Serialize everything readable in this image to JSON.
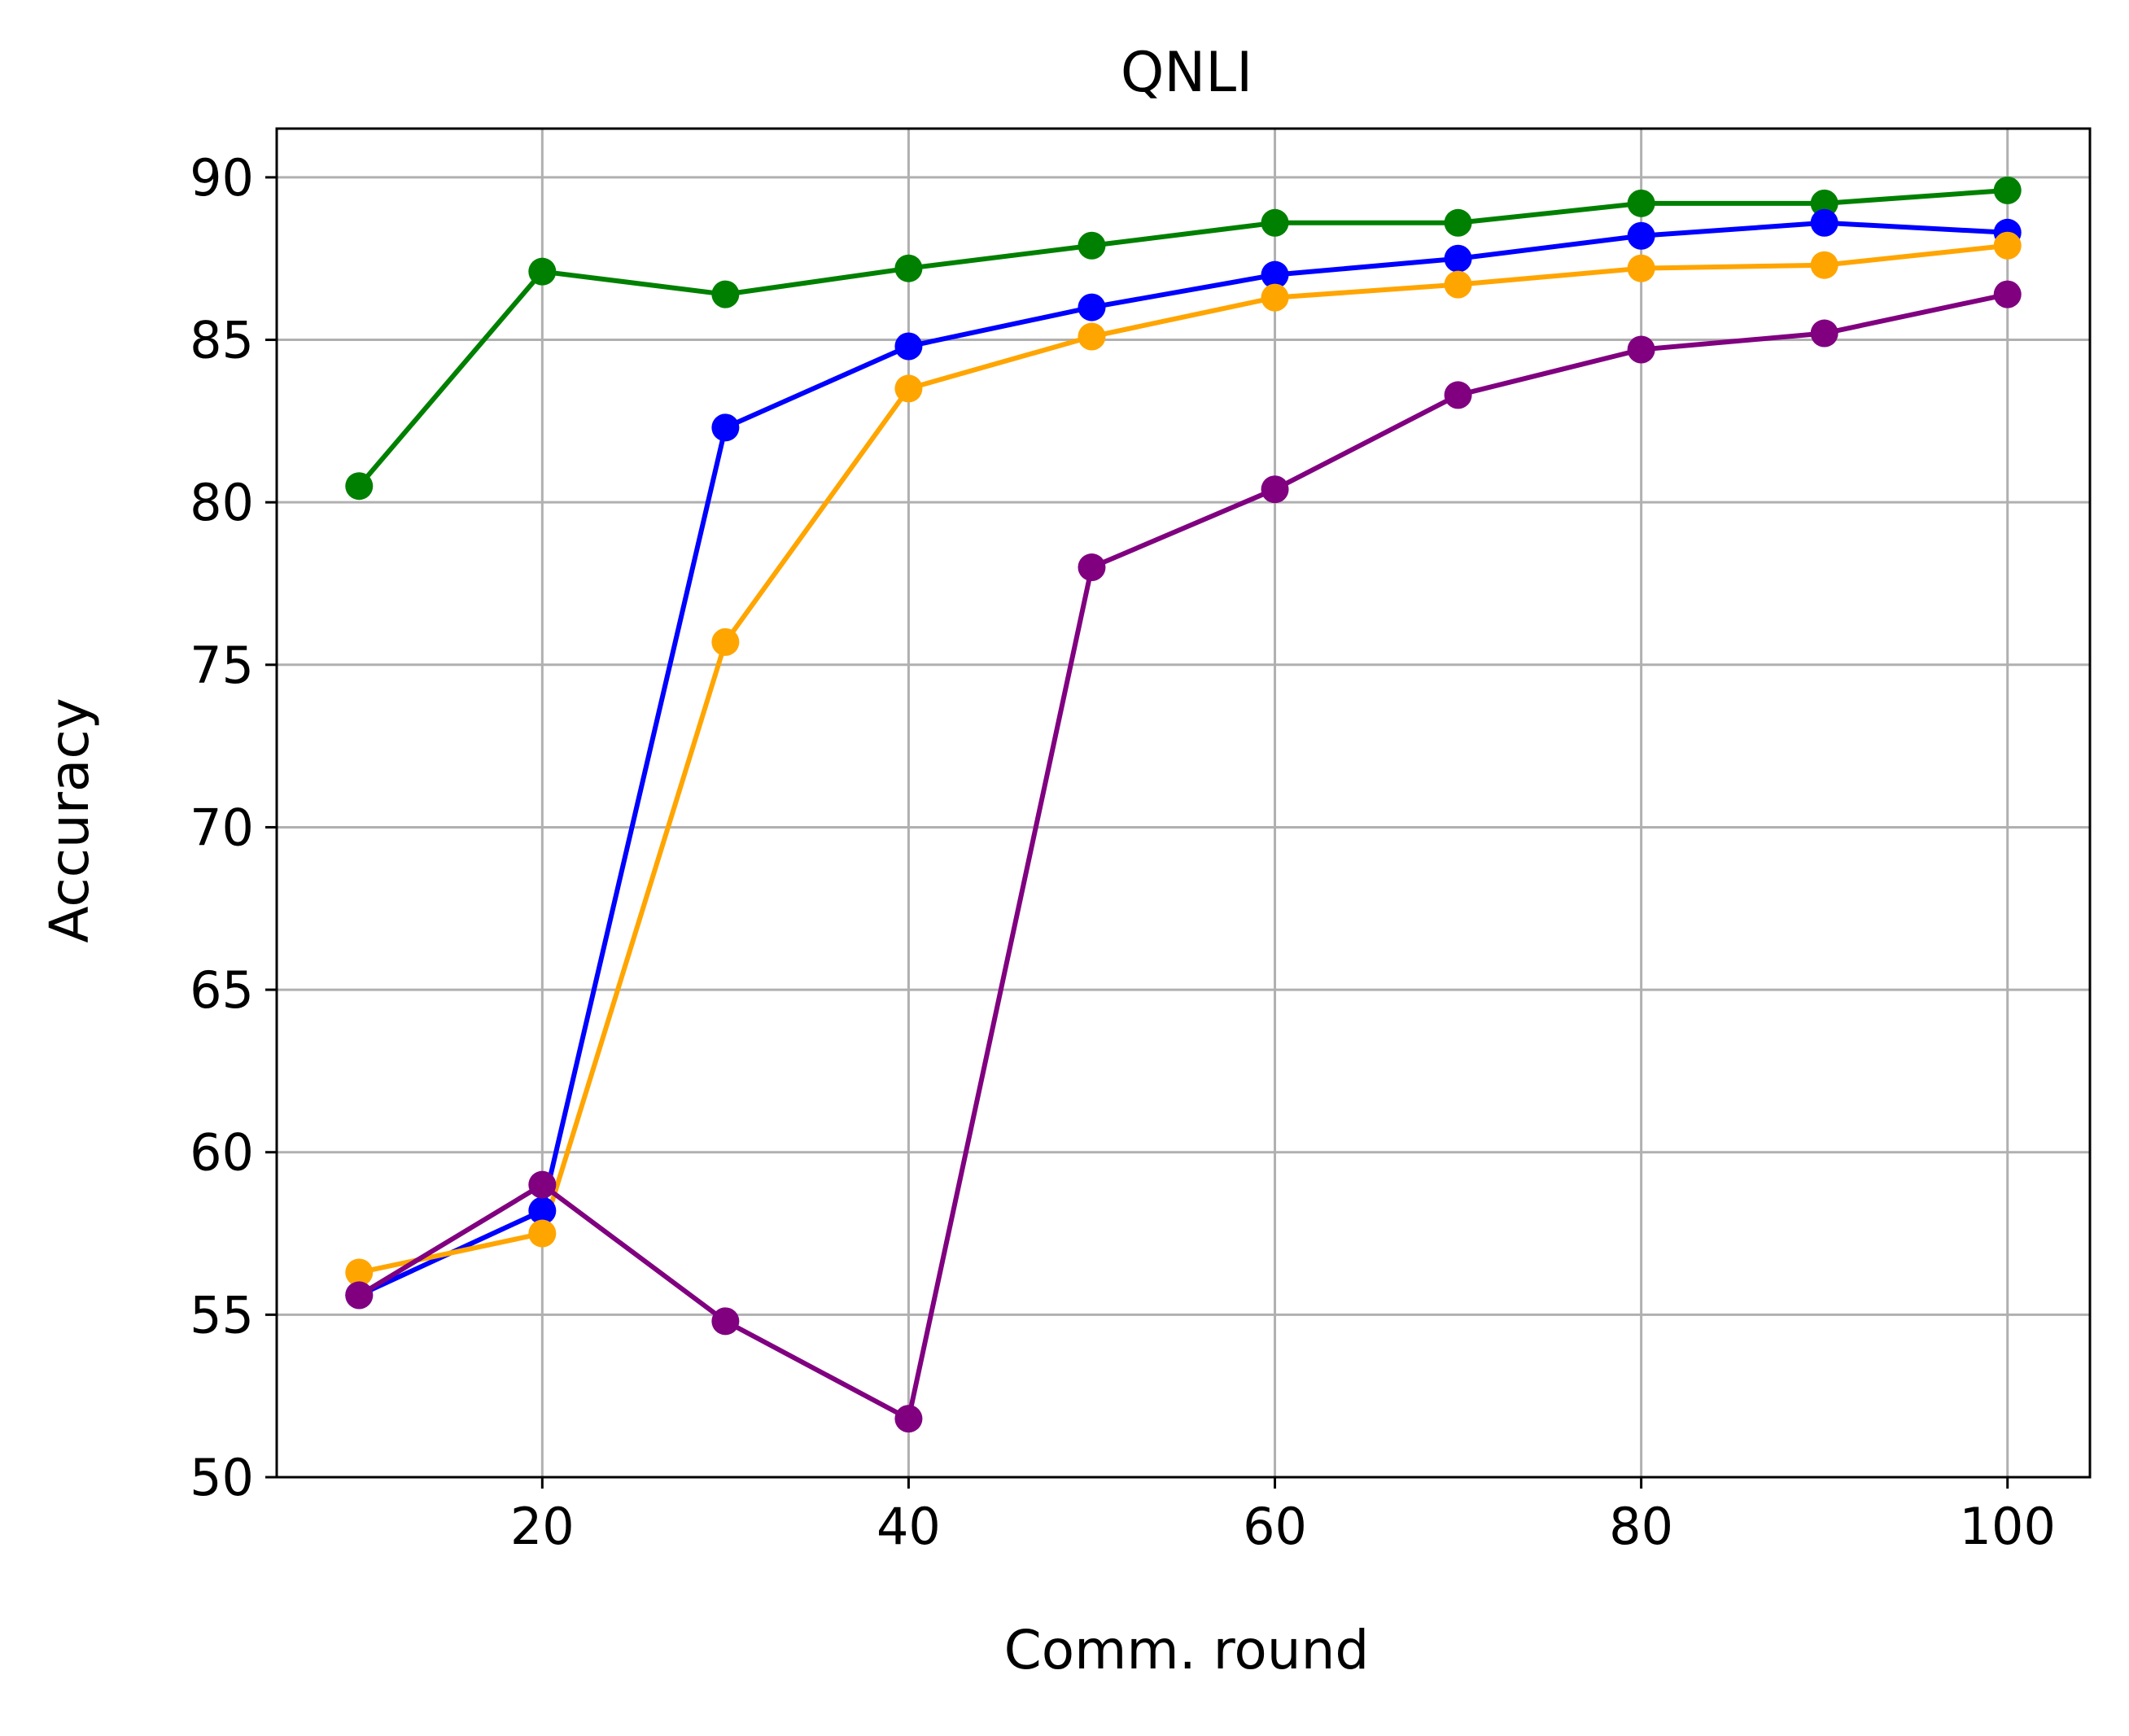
{
  "chart_data": {
    "type": "line",
    "title": "QNLI",
    "xlabel": "Comm. round",
    "ylabel": "Accuracy",
    "xlim": [
      5.5,
      104.5
    ],
    "ylim": [
      50,
      91.5
    ],
    "xticks": [
      20,
      40,
      60,
      80,
      100
    ],
    "yticks": [
      50,
      55,
      60,
      65,
      70,
      75,
      80,
      85,
      90
    ],
    "grid": true,
    "legend": false,
    "x": [
      10,
      20,
      30,
      40,
      50,
      60,
      70,
      80,
      90,
      100
    ],
    "series": [
      {
        "color": "#008000",
        "values": [
          80.5,
          87.1,
          86.4,
          87.2,
          87.9,
          88.6,
          88.6,
          89.2,
          89.2,
          89.6
        ]
      },
      {
        "color": "#0000ff",
        "values": [
          55.6,
          58.2,
          82.3,
          84.8,
          86.0,
          87.0,
          87.5,
          88.2,
          88.6,
          88.3
        ]
      },
      {
        "color": "#ffa500",
        "values": [
          56.3,
          57.5,
          75.7,
          83.5,
          85.1,
          86.3,
          86.7,
          87.2,
          87.3,
          87.9
        ]
      },
      {
        "color": "#800080",
        "values": [
          55.6,
          59.0,
          54.8,
          51.8,
          78.0,
          80.4,
          83.3,
          84.7,
          85.2,
          86.4
        ]
      }
    ]
  }
}
